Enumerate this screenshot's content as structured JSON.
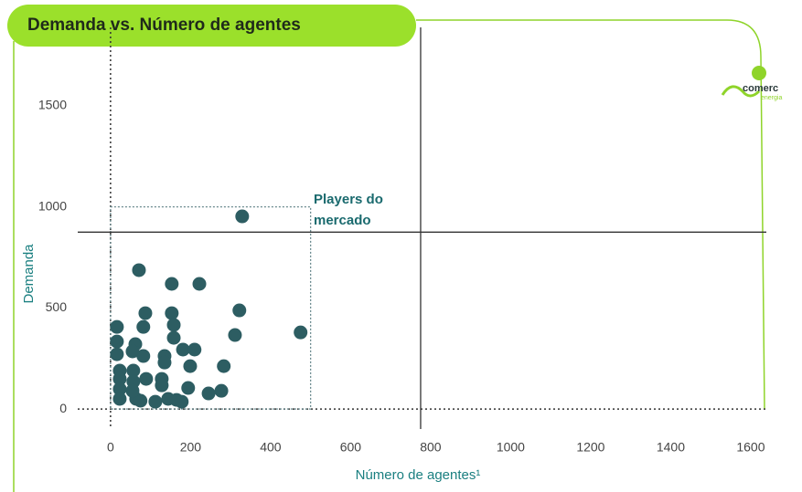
{
  "chart_data": {
    "type": "scatter",
    "title": "Demanda vs. Número de agentes",
    "xlabel": "Número de agentes¹",
    "ylabel": "Demanda",
    "annotation": [
      "Players do",
      "mercado"
    ],
    "logo": {
      "name": "comerc",
      "subtitle": "energia"
    },
    "x": [
      329,
      71,
      153,
      222,
      322,
      87,
      153,
      16,
      82,
      158,
      311,
      475,
      158,
      16,
      62,
      181,
      210,
      55,
      16,
      135,
      82,
      135,
      199,
      283,
      23,
      57,
      89,
      128,
      23,
      57,
      23,
      128,
      194,
      277,
      245,
      23,
      64,
      75,
      112,
      144,
      165,
      178,
      55
    ],
    "values": [
      953,
      687,
      619,
      619,
      488,
      474,
      474,
      406,
      406,
      416,
      366,
      379,
      352,
      334,
      321,
      294,
      294,
      285,
      271,
      262,
      262,
      230,
      212,
      212,
      190,
      190,
      149,
      149,
      149,
      136,
      99,
      117,
      104,
      90,
      77,
      50,
      50,
      41,
      36,
      50,
      45,
      36,
      90
    ],
    "color": "#2d5d62",
    "xlim": [
      -82,
      1639
    ],
    "ylim": [
      -99,
      1888
    ],
    "xticks": [
      0,
      200,
      400,
      600,
      800,
      1000,
      1200,
      1400,
      1600
    ],
    "yticks": [
      0,
      500,
      1000,
      1500
    ],
    "zero_lines": true,
    "reference_lines": {
      "x": 775,
      "y": 875
    },
    "highlight_box": {
      "x": [
        0,
        500
      ],
      "y": [
        0,
        1000
      ]
    }
  }
}
